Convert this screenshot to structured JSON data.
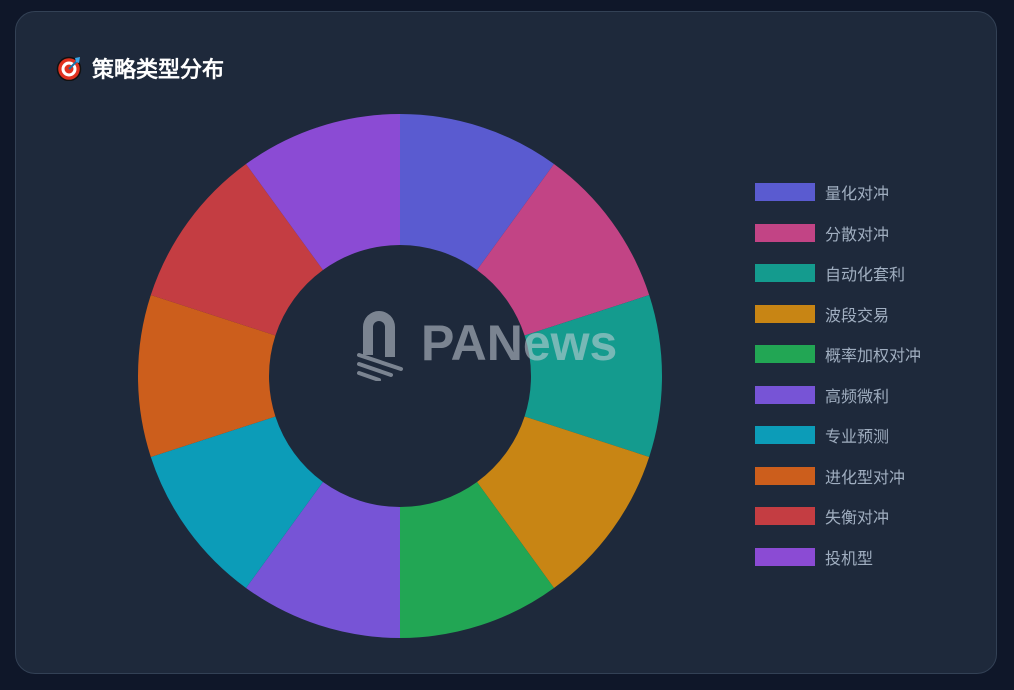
{
  "title": "策略类型分布",
  "title_icon": "target-icon",
  "watermark": "PANews",
  "colors": {
    "background": "#0f1729",
    "card": "#1e293b",
    "legend_text": "#a0aec0"
  },
  "chart_data": {
    "type": "pie",
    "donut": true,
    "title": "策略类型分布",
    "legend_position": "right",
    "categories": [
      "量化对冲",
      "分散对冲",
      "自动化套利",
      "波段交易",
      "概率加权对冲",
      "高频微利",
      "专业预测",
      "进化型对冲",
      "失衡对冲",
      "投机型"
    ],
    "values": [
      10,
      10,
      10,
      10,
      10,
      10,
      10,
      10,
      10,
      10
    ],
    "colors": [
      "#5a5bd0",
      "#c24485",
      "#149b8e",
      "#c88514",
      "#22a654",
      "#7754d6",
      "#0c9cb8",
      "#cc5e1c",
      "#c43d42",
      "#8b4bd4"
    ]
  }
}
